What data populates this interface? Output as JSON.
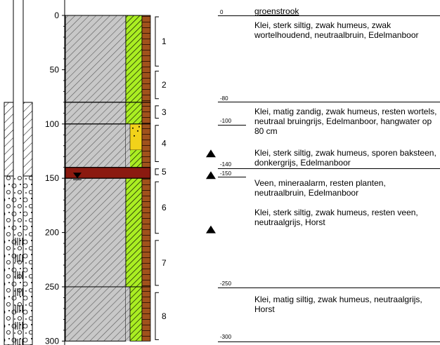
{
  "depth_axis": {
    "min": 0,
    "max": 300,
    "ticks": [
      0,
      50,
      100,
      150,
      200,
      250,
      300
    ]
  },
  "surface": {
    "depth": "0",
    "label": "groenstrook"
  },
  "layers": [
    {
      "number": "1",
      "top": 0,
      "bottom": 80,
      "fill": "#c8c8c8",
      "pattern": "clay"
    },
    {
      "number": "2",
      "top": 80,
      "bottom": 100,
      "fill": "#c8c8c8",
      "pattern": "clay"
    },
    {
      "number": "3",
      "top": 100,
      "bottom": 140,
      "fill": "#c8c8c8",
      "pattern": "clay"
    },
    {
      "number": "4",
      "top": 140,
      "bottom": 150,
      "fill": "#8b1a10",
      "pattern": "peat"
    },
    {
      "number": "5",
      "top": 150,
      "bottom": 250,
      "fill": "#c8c8c8",
      "pattern": "clay"
    },
    {
      "number": "6",
      "top": 250,
      "bottom": 300,
      "fill": "#c8c8c8",
      "pattern": "clay"
    }
  ],
  "segments": [
    {
      "label": "1"
    },
    {
      "label": "2"
    },
    {
      "label": "3"
    },
    {
      "label": "4"
    },
    {
      "label": "5"
    },
    {
      "label": "6"
    },
    {
      "label": "7"
    },
    {
      "label": "8"
    }
  ],
  "boundaries": [
    {
      "depth": "-80"
    },
    {
      "depth": "-100"
    },
    {
      "depth": "-140"
    },
    {
      "depth": "-150"
    },
    {
      "depth": "-250"
    },
    {
      "depth": "-300"
    }
  ],
  "descriptions": [
    "Klei, sterk siltig, zwak humeus, zwak wortelhoudend, neutraalbruin, Edelmanboor",
    "Klei, matig zandig, zwak humeus, resten wortels, neutraal bruingrijs, Edelmanboor, hangwater op 80 cm",
    "Klei, sterk siltig, zwak humeus, sporen baksteen, donkergrijs, Edelmanboor",
    "Veen, mineraalarm, resten planten, neutraalbruin, Edelmanboor",
    "Klei, sterk siltig, zwak humeus, resten veen, neutraalgrijs, Horst",
    "Klei, matig siltig, zwak humeus, neutraalgrijs, Horst"
  ],
  "sample_depths": [
    130,
    150,
    200
  ],
  "groundwater_depth": 150,
  "colors": {
    "clay": "#c8c8c8",
    "peat": "#8b1a10",
    "silt_green": "#aaee22",
    "brown": "#a0521c",
    "sand_yellow": "#f2d21a"
  }
}
